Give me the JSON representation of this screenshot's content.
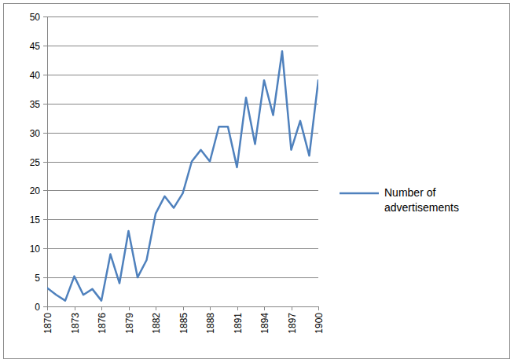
{
  "chart_data": {
    "type": "line",
    "x": [
      1870,
      1871,
      1872,
      1873,
      1874,
      1875,
      1876,
      1877,
      1878,
      1879,
      1880,
      1881,
      1882,
      1883,
      1884,
      1885,
      1886,
      1887,
      1888,
      1889,
      1890,
      1891,
      1892,
      1893,
      1894,
      1895,
      1896,
      1897,
      1898,
      1899,
      1900
    ],
    "series": [
      {
        "name": "Number of advertisements",
        "color": "#4f81bd",
        "values": [
          3.2,
          2,
          1,
          5.2,
          2,
          3,
          1,
          9,
          4,
          13,
          5,
          8,
          16,
          19,
          17,
          19.5,
          25,
          27,
          25,
          31,
          31,
          24,
          36,
          28,
          39,
          33,
          44,
          27,
          32,
          26,
          39
        ]
      }
    ],
    "xlim": [
      1870,
      1900
    ],
    "xticks": [
      1870,
      1873,
      1876,
      1879,
      1882,
      1885,
      1888,
      1891,
      1894,
      1897,
      1900
    ],
    "ylim": [
      0,
      50
    ],
    "yticks": [
      0,
      5,
      10,
      15,
      20,
      25,
      30,
      35,
      40,
      45,
      50
    ],
    "grid": true,
    "legend": "right"
  }
}
